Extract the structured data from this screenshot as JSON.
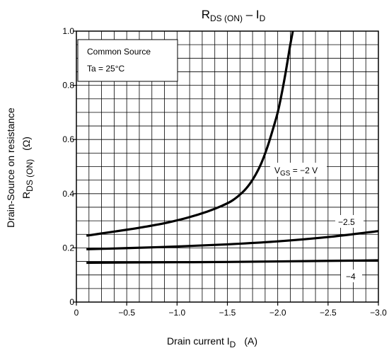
{
  "chart_data": {
    "type": "line",
    "title_main": "R",
    "title_sub1": "DS (ON)",
    "title_mid": " – I",
    "title_sub2": "D",
    "xlabel_main": "Drain current  I",
    "xlabel_sub": "D",
    "xlabel_unit": "(A)",
    "ylabel_line1": "Drain-Source on resistance",
    "ylabel_line2_main": "R",
    "ylabel_line2_sub": "DS (ON)",
    "ylabel_line2_unit": "(Ω)",
    "xlim": [
      0,
      -3.0
    ],
    "ylim": [
      0,
      1.0
    ],
    "x_ticks": [
      0,
      -0.5,
      -1.0,
      -1.5,
      -2.0,
      -2.5,
      -3.0
    ],
    "x_tick_labels": [
      "0",
      "−0.5",
      "−1.0",
      "−1.5",
      "−2.0",
      "−2.5",
      "−3.0"
    ],
    "y_ticks": [
      0,
      0.2,
      0.4,
      0.6,
      0.8,
      1.0
    ],
    "y_tick_labels": [
      "0",
      "0.2",
      "0.4",
      "0.6",
      "0.8",
      "1.0"
    ],
    "grid": true,
    "legend_box": {
      "line1": "Common Source",
      "line2": "Ta = 25°C"
    },
    "series": [
      {
        "name": "VGS = −2 V",
        "label_main": "V",
        "label_sub": "GS",
        "label_rest": " = −2 V",
        "x": [
          -0.1,
          -0.3,
          -0.5,
          -0.7,
          -0.9,
          -1.1,
          -1.3,
          -1.45,
          -1.55,
          -1.65,
          -1.72,
          -1.78,
          -1.84,
          -1.9,
          -1.95,
          -2.0,
          -2.04,
          -2.08,
          -2.12,
          -2.15
        ],
        "y": [
          0.245,
          0.256,
          0.267,
          0.279,
          0.293,
          0.311,
          0.334,
          0.356,
          0.375,
          0.405,
          0.435,
          0.47,
          0.515,
          0.575,
          0.635,
          0.7,
          0.77,
          0.85,
          0.94,
          1.0
        ]
      },
      {
        "name": "−2.5",
        "label_main": "−2.5",
        "x": [
          -0.1,
          -0.5,
          -1.0,
          -1.5,
          -2.0,
          -2.5,
          -3.0
        ],
        "y": [
          0.195,
          0.199,
          0.205,
          0.213,
          0.224,
          0.24,
          0.262
        ]
      },
      {
        "name": "−4",
        "label_main": "−4",
        "x": [
          -0.1,
          -0.5,
          -1.0,
          -1.5,
          -2.0,
          -2.5,
          -3.0
        ],
        "y": [
          0.145,
          0.146,
          0.147,
          0.148,
          0.15,
          0.152,
          0.154
        ]
      }
    ]
  }
}
